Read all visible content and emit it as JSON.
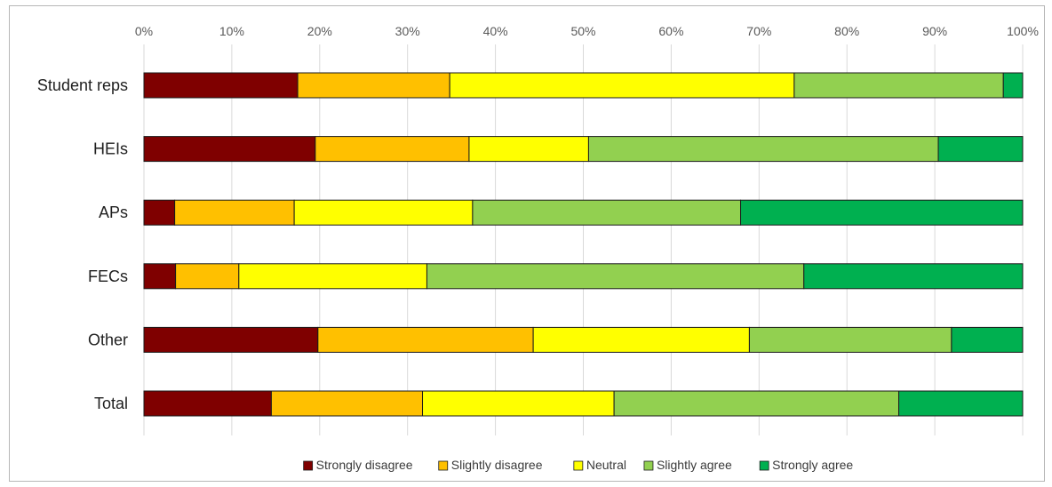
{
  "chart_data": {
    "type": "bar",
    "orientation": "horizontal",
    "stacked": true,
    "normalized_percent": true,
    "categories": [
      "Student reps",
      "HEIs",
      "APs",
      "FECs",
      "Other",
      "Total"
    ],
    "series": [
      {
        "name": "Strongly disagree",
        "color": "#7f0000",
        "values": [
          17.5,
          19.5,
          3.5,
          3.6,
          19.8,
          14.5
        ]
      },
      {
        "name": "Slightly disagree",
        "color": "#ffc000",
        "values": [
          17.3,
          17.5,
          13.6,
          7.2,
          24.5,
          17.2
        ]
      },
      {
        "name": "Neutral",
        "color": "#ffff00",
        "values": [
          39.2,
          13.6,
          20.3,
          21.4,
          24.6,
          21.8
        ]
      },
      {
        "name": "Slightly agree",
        "color": "#92d050",
        "values": [
          23.8,
          39.8,
          30.5,
          42.9,
          23.0,
          32.4
        ]
      },
      {
        "name": "Strongly agree",
        "color": "#00b050",
        "values": [
          2.2,
          9.6,
          32.1,
          24.9,
          8.1,
          14.1
        ]
      }
    ],
    "x_ticks": [
      "0%",
      "10%",
      "20%",
      "30%",
      "40%",
      "50%",
      "60%",
      "70%",
      "80%",
      "90%",
      "100%"
    ],
    "xlim": [
      0,
      100
    ],
    "xlabel": "",
    "ylabel": "",
    "title": "",
    "grid": "vertical",
    "legend_position": "bottom"
  }
}
